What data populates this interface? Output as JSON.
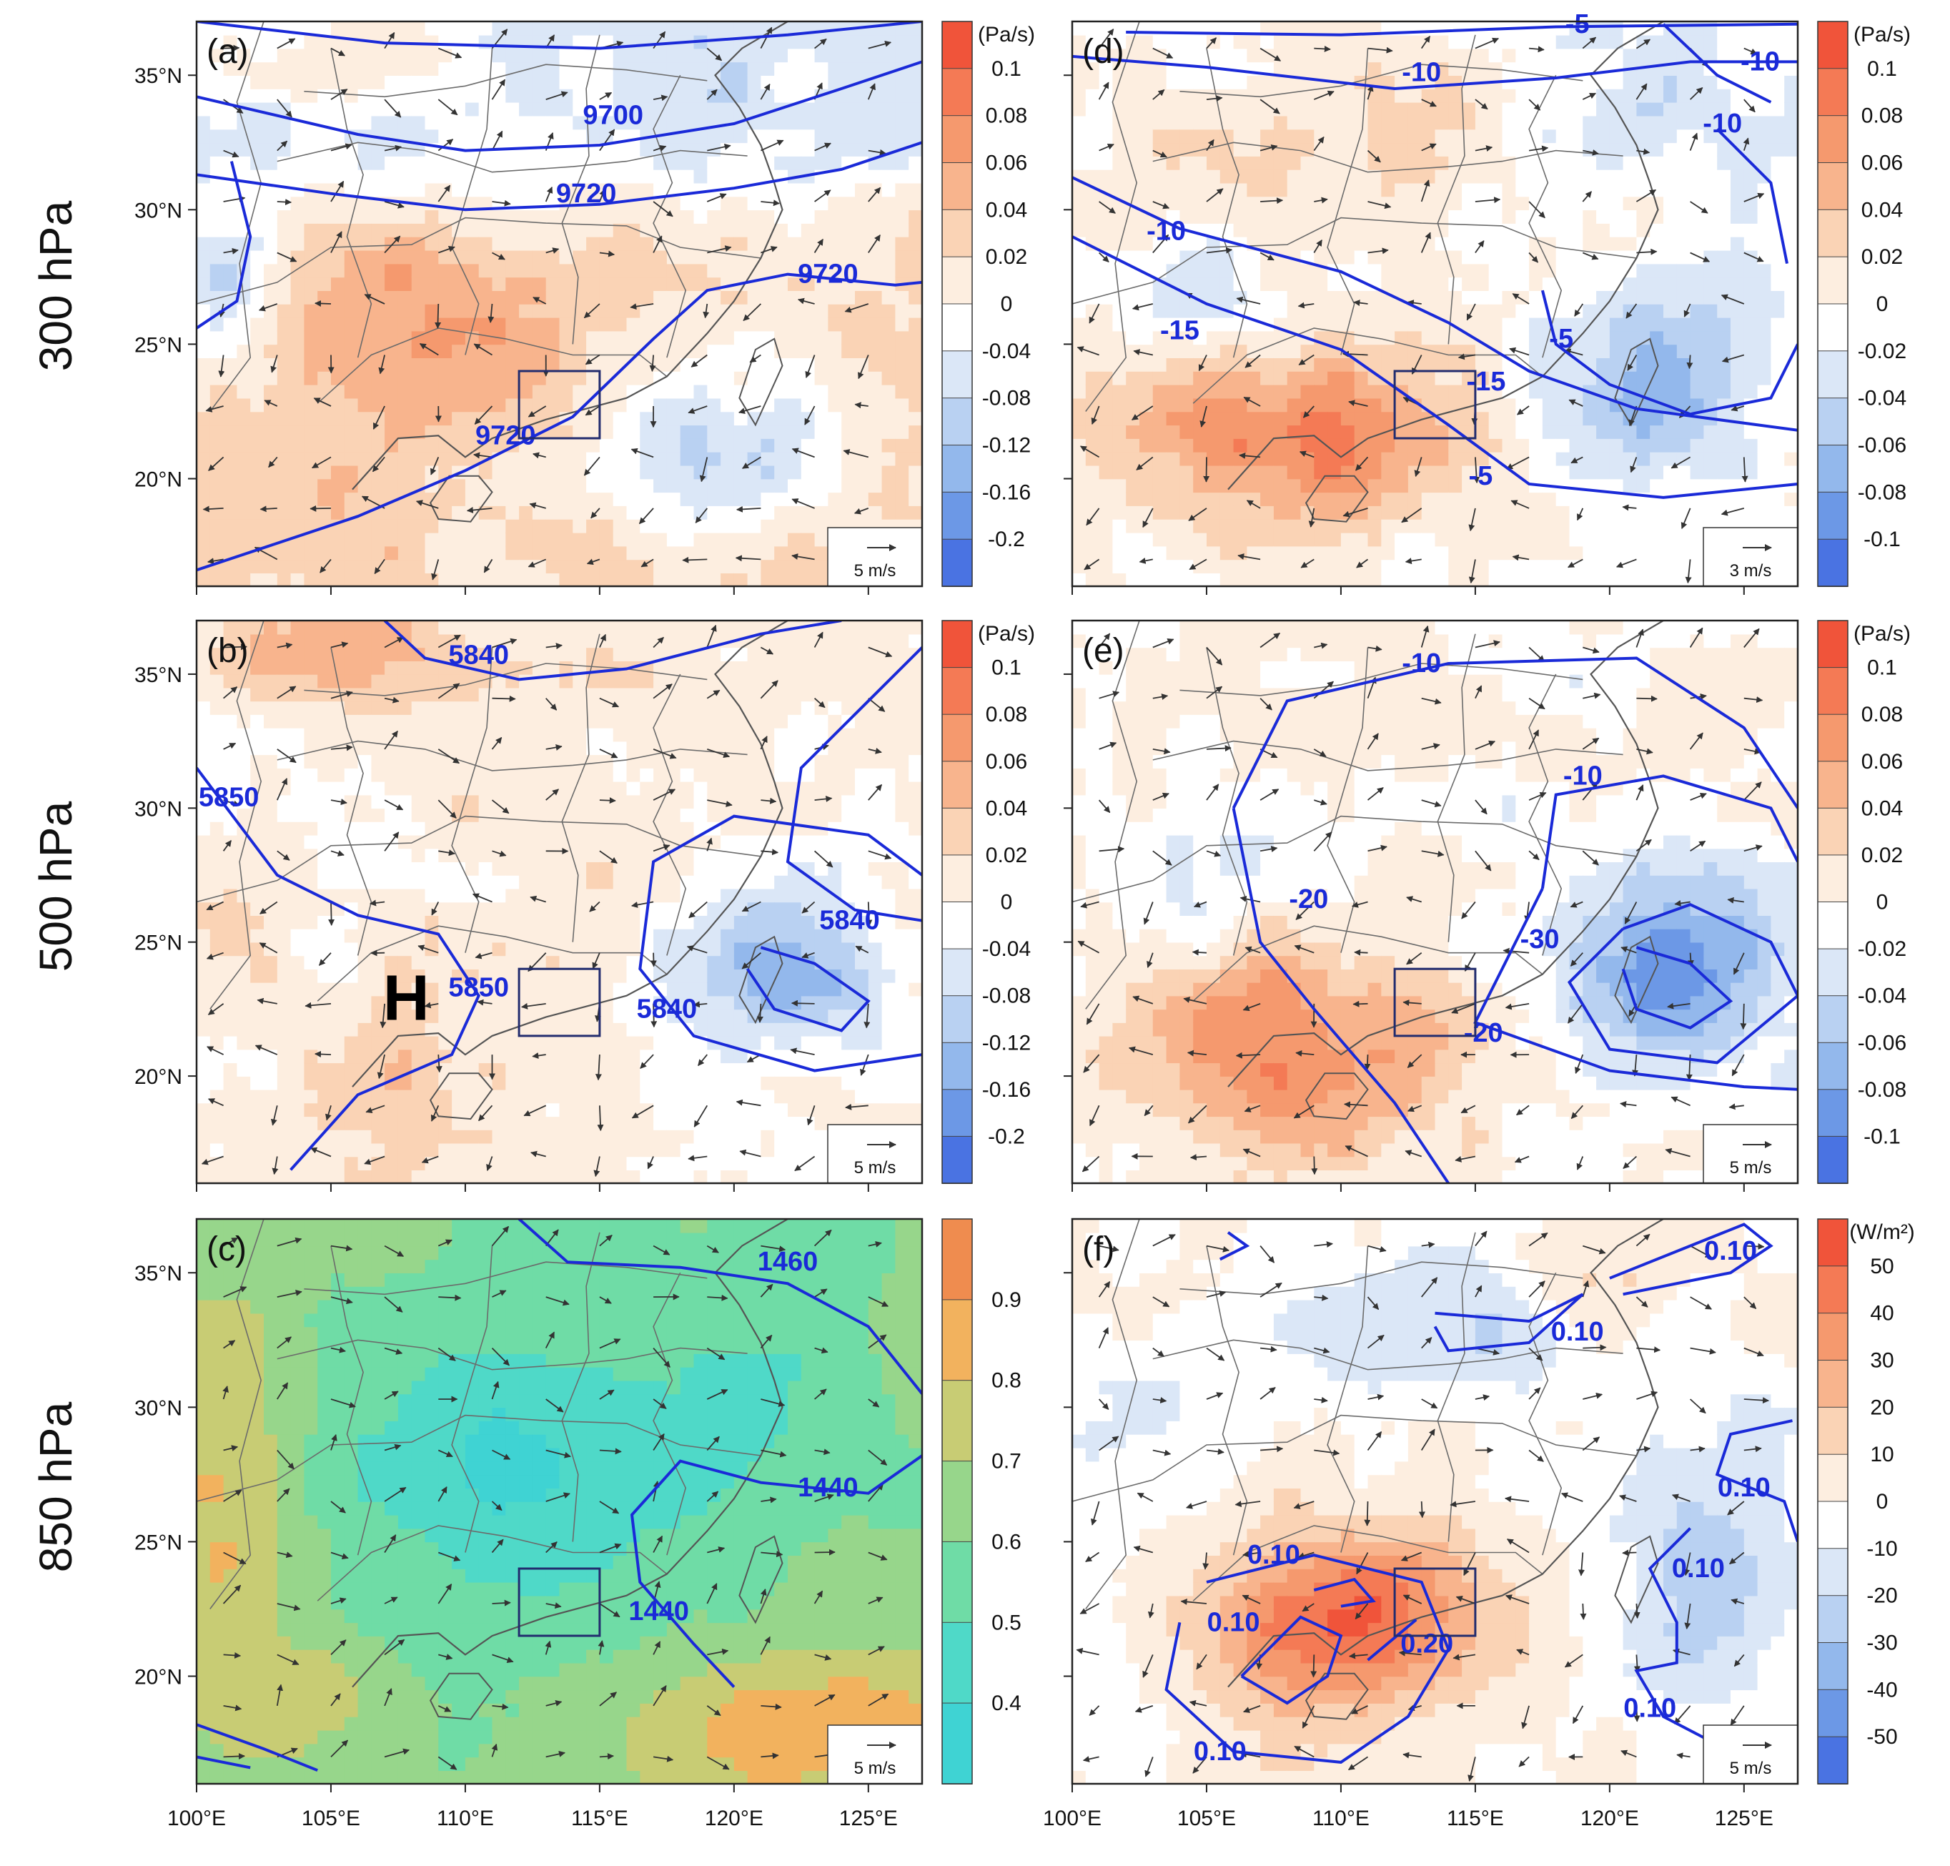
{
  "chart_data": {
    "type": "heatmap",
    "row_labels": [
      "300 hPa",
      "500 hPa",
      "850 hPa"
    ],
    "x_ticks": [
      "100°E",
      "105°E",
      "110°E",
      "115°E",
      "120°E",
      "125°E"
    ],
    "x_tick_values": [
      100,
      105,
      110,
      115,
      120,
      125
    ],
    "y_ticks": [
      "35°N",
      "30°N",
      "25°N",
      "20°N"
    ],
    "y_tick_values": [
      35,
      30,
      25,
      20
    ],
    "xlim": [
      100,
      127
    ],
    "ylim": [
      16,
      37
    ],
    "box": {
      "lon": [
        112,
        115
      ],
      "lat": [
        21.5,
        24
      ]
    },
    "colorbars": {
      "omega_wide": {
        "unit": "(Pa/s)",
        "labels": [
          "0.1",
          "0.08",
          "0.06",
          "0.04",
          "0.02",
          "0",
          "-0.04",
          "-0.08",
          "-0.12",
          "-0.16",
          "-0.2"
        ],
        "colors": [
          "#f0543a",
          "#f47a55",
          "#f5996e",
          "#f8b48d",
          "#fad3b5",
          "#fdeee0",
          "#ffffff",
          "#dbe7f7",
          "#b9d1f2",
          "#93b8ec",
          "#6c98e6",
          "#4a73e2"
        ]
      },
      "omega_narrow": {
        "unit": "(Pa/s)",
        "labels": [
          "0.1",
          "0.08",
          "0.06",
          "0.04",
          "0.02",
          "0",
          "-0.02",
          "-0.04",
          "-0.06",
          "-0.08",
          "-0.1"
        ],
        "colors": [
          "#f0543a",
          "#f47a55",
          "#f5996e",
          "#f8b48d",
          "#fad3b5",
          "#fdeee0",
          "#ffffff",
          "#dbe7f7",
          "#b9d1f2",
          "#93b8ec",
          "#6c98e6",
          "#4a73e2"
        ]
      },
      "humidity": {
        "unit": "",
        "labels": [
          "0.9",
          "0.8",
          "0.7",
          "0.6",
          "0.5",
          "0.4"
        ],
        "colors": [
          "#ef8c4f",
          "#f2b25e",
          "#c8cc74",
          "#97d68b",
          "#6fdca6",
          "#4fd9c8",
          "#3fd3d3"
        ]
      },
      "flux": {
        "unit": "(W/m²)",
        "labels": [
          "50",
          "40",
          "30",
          "20",
          "10",
          "0",
          "-10",
          "-20",
          "-30",
          "-40",
          "-50"
        ],
        "colors": [
          "#f0543a",
          "#f47a55",
          "#f5996e",
          "#f8b48d",
          "#fad3b5",
          "#fdeee0",
          "#ffffff",
          "#dbe7f7",
          "#b9d1f2",
          "#93b8ec",
          "#6c98e6",
          "#4a73e2"
        ]
      }
    },
    "panels": [
      {
        "label": "(a)",
        "field": "omega",
        "ref_vector": "5 m/s",
        "colorbar": "omega_wide",
        "contour_labels": [
          "9700",
          "9720",
          "9720",
          "9720"
        ]
      },
      {
        "label": "(d)",
        "field": "omega anomaly",
        "ref_vector": "3 m/s",
        "colorbar": "omega_narrow",
        "contour_labels": [
          "-5",
          "-10",
          "-10",
          "-15",
          "-10",
          "-5",
          "-15",
          "-10",
          "-5"
        ]
      },
      {
        "label": "(b)",
        "field": "omega",
        "ref_vector": "5 m/s",
        "colorbar": "omega_wide",
        "marker": "H",
        "contour_labels": [
          "5840",
          "5850",
          "5850",
          "5840",
          "5840"
        ]
      },
      {
        "label": "(e)",
        "field": "omega anomaly",
        "ref_vector": "5 m/s",
        "colorbar": "omega_narrow",
        "contour_labels": [
          "-10",
          "-20",
          "-10",
          "-30",
          "-20"
        ]
      },
      {
        "label": "(c)",
        "field": "relative humidity",
        "ref_vector": "5 m/s",
        "colorbar": "humidity",
        "contour_labels": [
          "1460",
          "1440",
          "1440"
        ]
      },
      {
        "label": "(f)",
        "field": "flux anomaly",
        "ref_vector": "5 m/s",
        "colorbar": "flux",
        "contour_labels": [
          "0.10",
          "0.10",
          "0.10",
          "0.10",
          "0.10",
          "0.20",
          "0.10",
          "0.10",
          "0.10"
        ]
      }
    ]
  }
}
